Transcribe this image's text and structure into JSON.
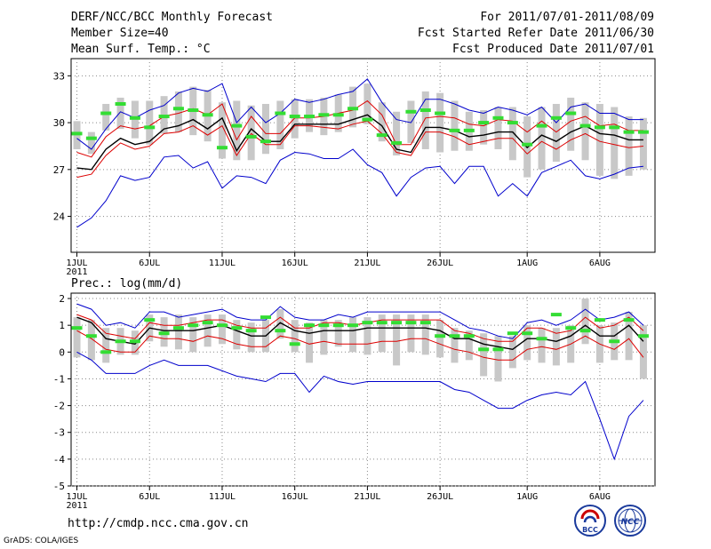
{
  "header": {
    "title": "DERF/NCC/BCC Monthly Forecast",
    "member_size": "Member Size=40",
    "variable": "Mean Surf. Temp.: °C",
    "period": "For 2011/07/01-2011/08/09",
    "fcst_started": "Fcst Started Refer Date 2011/06/30",
    "fcst_produced": "Fcst Produced Date 2011/07/01"
  },
  "footer": {
    "url": "http://cmdp.ncc.cma.gov.cn",
    "credit": "GrADS: COLA/IGES"
  },
  "logos": [
    {
      "name": "bcc-logo",
      "text": "BCC"
    },
    {
      "name": "ncc-logo",
      "text": "NCC"
    }
  ],
  "colors": {
    "envelope": "#0000cc",
    "spread": "#dd0000",
    "mean": "#000000",
    "observed": "#33dd33",
    "bars": "#c8c8c8",
    "grid": "#888888"
  },
  "chart_data": [
    {
      "id": "temperature",
      "type": "line",
      "title": "Mean Surf. Temp.: °C",
      "x": [
        1,
        2,
        3,
        4,
        5,
        6,
        7,
        8,
        9,
        10,
        11,
        12,
        13,
        14,
        15,
        16,
        17,
        18,
        19,
        20,
        21,
        22,
        23,
        24,
        25,
        26,
        27,
        28,
        29,
        30,
        31,
        32,
        33,
        34,
        35,
        36,
        37,
        38,
        39,
        40
      ],
      "xlim": [
        0.6,
        40.8
      ],
      "ylim": [
        21.7,
        34.1
      ],
      "yticks": [
        24,
        27,
        30,
        33
      ],
      "xticks": [
        {
          "x": 1,
          "label": "1JUL",
          "sublabel": "2011"
        },
        {
          "x": 6,
          "label": "6JUL"
        },
        {
          "x": 11,
          "label": "11JUL"
        },
        {
          "x": 16,
          "label": "16JUL"
        },
        {
          "x": 21,
          "label": "21JUL"
        },
        {
          "x": 26,
          "label": "26JUL"
        },
        {
          "x": 32,
          "label": "1AUG"
        },
        {
          "x": 37,
          "label": "6AUG"
        }
      ],
      "series": [
        {
          "name": "max",
          "style": "envelope",
          "values": [
            29.0,
            28.3,
            29.6,
            30.7,
            30.3,
            30.8,
            31.1,
            31.9,
            32.2,
            32.0,
            32.5,
            30.0,
            31.0,
            30.0,
            30.6,
            31.5,
            31.3,
            31.5,
            31.8,
            32.0,
            32.8,
            31.3,
            30.2,
            30.0,
            31.5,
            31.5,
            31.2,
            30.8,
            30.6,
            31.0,
            30.8,
            30.5,
            31.0,
            30.0,
            31.0,
            31.2,
            30.6,
            30.6,
            30.2,
            30.2
          ]
        },
        {
          "name": "upper",
          "style": "spread",
          "values": [
            28.1,
            27.8,
            29.1,
            29.8,
            29.6,
            29.8,
            30.4,
            30.6,
            30.9,
            30.5,
            31.2,
            28.9,
            30.4,
            29.3,
            29.3,
            30.3,
            30.3,
            30.4,
            30.6,
            30.8,
            31.4,
            30.5,
            28.6,
            28.6,
            30.3,
            30.4,
            30.3,
            29.9,
            29.8,
            30.2,
            30.1,
            29.4,
            30.1,
            29.4,
            30.1,
            30.4,
            29.8,
            29.9,
            29.5,
            29.5
          ]
        },
        {
          "name": "mean",
          "style": "mean",
          "values": [
            27.1,
            27.0,
            28.3,
            29.0,
            28.6,
            28.8,
            29.6,
            29.8,
            30.2,
            29.6,
            30.3,
            28.2,
            29.6,
            28.8,
            28.8,
            29.9,
            29.9,
            29.9,
            29.9,
            30.2,
            30.5,
            29.8,
            28.3,
            28.1,
            29.7,
            29.7,
            29.5,
            29.1,
            29.2,
            29.4,
            29.4,
            28.4,
            29.2,
            28.8,
            29.4,
            29.8,
            29.3,
            29.2,
            28.9,
            28.9
          ]
        },
        {
          "name": "lower",
          "style": "spread",
          "values": [
            26.5,
            26.7,
            27.9,
            28.7,
            28.3,
            28.5,
            29.3,
            29.4,
            29.8,
            29.2,
            29.8,
            27.9,
            29.3,
            28.6,
            28.6,
            29.8,
            29.8,
            29.7,
            29.6,
            29.9,
            30.1,
            29.3,
            28.1,
            27.9,
            29.4,
            29.4,
            29.1,
            28.6,
            28.8,
            29.0,
            29.0,
            28.0,
            28.8,
            28.3,
            28.9,
            29.3,
            28.8,
            28.6,
            28.4,
            28.5
          ]
        },
        {
          "name": "min",
          "style": "envelope",
          "values": [
            23.3,
            23.9,
            25.0,
            26.6,
            26.3,
            26.5,
            27.8,
            27.9,
            27.1,
            27.5,
            25.8,
            26.6,
            26.5,
            26.1,
            27.6,
            28.1,
            28.0,
            27.7,
            27.7,
            28.3,
            27.3,
            26.8,
            25.3,
            26.5,
            27.1,
            27.2,
            26.1,
            27.2,
            27.2,
            25.3,
            26.1,
            25.3,
            26.8,
            27.2,
            27.6,
            26.6,
            26.4,
            26.7,
            27.1,
            27.2
          ]
        }
      ],
      "observed": [
        29.3,
        29.0,
        30.6,
        31.2,
        30.3,
        29.7,
        30.4,
        30.9,
        30.8,
        30.5,
        28.4,
        29.8,
        29.1,
        28.8,
        30.6,
        30.4,
        30.4,
        30.5,
        30.5,
        30.9,
        30.2,
        29.2,
        28.7,
        30.7,
        30.8,
        30.6,
        29.5,
        29.5,
        30.0,
        30.3,
        30.0,
        28.6,
        29.8,
        30.3,
        30.6,
        29.8,
        29.7,
        29.7,
        29.4,
        29.4
      ],
      "bars": [
        [
          28.3,
          30.1
        ],
        [
          28.0,
          29.4
        ],
        [
          29.5,
          31.2
        ],
        [
          29.6,
          31.6
        ],
        [
          29.0,
          31.4
        ],
        [
          28.6,
          31.4
        ],
        [
          29.3,
          31.7
        ],
        [
          29.4,
          32.0
        ],
        [
          29.2,
          32.3
        ],
        [
          28.8,
          32.1
        ],
        [
          27.7,
          31.3
        ],
        [
          27.6,
          31.4
        ],
        [
          27.6,
          31.1
        ],
        [
          28.0,
          31.2
        ],
        [
          28.3,
          31.4
        ],
        [
          29.0,
          31.5
        ],
        [
          29.4,
          31.5
        ],
        [
          29.2,
          31.6
        ],
        [
          29.4,
          31.8
        ],
        [
          29.7,
          32.3
        ],
        [
          29.9,
          32.5
        ],
        [
          28.8,
          31.3
        ],
        [
          27.9,
          30.7
        ],
        [
          28.7,
          31.4
        ],
        [
          28.3,
          32.0
        ],
        [
          28.1,
          31.9
        ],
        [
          28.2,
          31.4
        ],
        [
          28.2,
          30.7
        ],
        [
          28.6,
          30.8
        ],
        [
          28.3,
          31.0
        ],
        [
          27.6,
          31.0
        ],
        [
          26.5,
          30.4
        ],
        [
          27.0,
          31.0
        ],
        [
          27.5,
          31.2
        ],
        [
          28.2,
          31.6
        ],
        [
          27.6,
          31.3
        ],
        [
          26.6,
          31.2
        ],
        [
          26.4,
          31.0
        ],
        [
          26.6,
          30.4
        ],
        [
          27.0,
          30.3
        ]
      ]
    },
    {
      "id": "precipitation",
      "type": "line",
      "title": "Prec.: log(mm/d)",
      "x": [
        1,
        2,
        3,
        4,
        5,
        6,
        7,
        8,
        9,
        10,
        11,
        12,
        13,
        14,
        15,
        16,
        17,
        18,
        19,
        20,
        21,
        22,
        23,
        24,
        25,
        26,
        27,
        28,
        29,
        30,
        31,
        32,
        33,
        34,
        35,
        36,
        37,
        38,
        39,
        40
      ],
      "xlim": [
        0.6,
        40.8
      ],
      "ylim": [
        -5,
        2.2
      ],
      "yticks": [
        -5,
        -4,
        -3,
        -2,
        -1,
        0,
        1,
        2
      ],
      "xticks": [
        {
          "x": 1,
          "label": "1JUL",
          "sublabel": "2011"
        },
        {
          "x": 6,
          "label": "6JUL"
        },
        {
          "x": 11,
          "label": "11JUL"
        },
        {
          "x": 16,
          "label": "16JUL"
        },
        {
          "x": 21,
          "label": "21JUL"
        },
        {
          "x": 26,
          "label": "26JUL"
        },
        {
          "x": 32,
          "label": "1AUG"
        },
        {
          "x": 37,
          "label": "6AUG"
        }
      ],
      "series": [
        {
          "name": "max",
          "style": "envelope",
          "values": [
            1.8,
            1.6,
            1.0,
            1.1,
            0.9,
            1.5,
            1.5,
            1.3,
            1.4,
            1.5,
            1.6,
            1.3,
            1.2,
            1.2,
            1.7,
            1.3,
            1.2,
            1.2,
            1.4,
            1.3,
            1.5,
            1.5,
            1.5,
            1.5,
            1.5,
            1.5,
            1.2,
            0.9,
            0.8,
            0.6,
            0.5,
            1.1,
            1.2,
            1.0,
            1.2,
            1.6,
            1.2,
            1.3,
            1.5,
            1.0
          ]
        },
        {
          "name": "upper",
          "style": "spread",
          "values": [
            1.4,
            1.2,
            0.7,
            0.6,
            0.5,
            1.1,
            1.0,
            1.0,
            1.1,
            1.2,
            1.2,
            1.0,
            0.9,
            0.9,
            1.3,
            0.9,
            0.9,
            1.1,
            1.1,
            1.0,
            1.1,
            1.2,
            1.2,
            1.2,
            1.2,
            1.2,
            0.8,
            0.7,
            0.5,
            0.4,
            0.4,
            0.9,
            0.9,
            0.7,
            0.8,
            1.3,
            0.9,
            1.0,
            1.3,
            0.8
          ]
        },
        {
          "name": "mean",
          "style": "mean",
          "values": [
            1.3,
            1.1,
            0.5,
            0.4,
            0.3,
            0.9,
            0.8,
            0.8,
            0.8,
            0.9,
            1.0,
            0.8,
            0.6,
            0.6,
            1.1,
            0.8,
            0.7,
            0.8,
            0.8,
            0.8,
            0.9,
            0.9,
            0.9,
            0.9,
            0.9,
            0.8,
            0.5,
            0.5,
            0.3,
            0.2,
            0.1,
            0.5,
            0.5,
            0.4,
            0.6,
            1.0,
            0.6,
            0.6,
            1.0,
            0.4
          ]
        },
        {
          "name": "lower",
          "style": "spread",
          "values": [
            0.8,
            0.5,
            0.1,
            0.0,
            0.0,
            0.6,
            0.5,
            0.5,
            0.4,
            0.6,
            0.5,
            0.3,
            0.2,
            0.2,
            0.6,
            0.5,
            0.3,
            0.4,
            0.3,
            0.3,
            0.3,
            0.4,
            0.4,
            0.5,
            0.5,
            0.3,
            0.1,
            0.0,
            -0.2,
            -0.3,
            -0.3,
            0.1,
            0.2,
            0.1,
            0.3,
            0.6,
            0.3,
            0.1,
            0.5,
            -0.2
          ]
        },
        {
          "name": "min",
          "style": "envelope",
          "values": [
            0.0,
            -0.3,
            -0.8,
            -0.8,
            -0.8,
            -0.5,
            -0.3,
            -0.5,
            -0.5,
            -0.5,
            -0.7,
            -0.9,
            -1.0,
            -1.1,
            -0.8,
            -0.8,
            -1.5,
            -0.9,
            -1.1,
            -1.2,
            -1.1,
            -1.1,
            -1.1,
            -1.1,
            -1.1,
            -1.1,
            -1.4,
            -1.5,
            -1.8,
            -2.1,
            -2.1,
            -1.8,
            -1.6,
            -1.5,
            -1.6,
            -1.1,
            -2.5,
            -4.0,
            -2.4,
            -1.8
          ]
        }
      ],
      "observed": [
        0.9,
        0.6,
        0.0,
        0.4,
        0.4,
        1.2,
        0.7,
        0.9,
        1.0,
        1.1,
        1.0,
        0.9,
        0.8,
        1.3,
        0.8,
        0.3,
        1.0,
        1.0,
        1.0,
        1.0,
        1.1,
        1.1,
        1.1,
        1.1,
        1.1,
        0.6,
        0.6,
        0.6,
        0.1,
        0.1,
        0.7,
        0.7,
        0.5,
        1.4,
        0.9,
        0.8,
        1.2,
        0.4,
        1.2,
        0.6
      ],
      "bars": [
        [
          -0.2,
          1.3
        ],
        [
          -0.3,
          1.2
        ],
        [
          -0.4,
          0.9
        ],
        [
          -0.1,
          0.9
        ],
        [
          -0.1,
          0.8
        ],
        [
          0.4,
          1.4
        ],
        [
          0.2,
          1.3
        ],
        [
          0.1,
          1.4
        ],
        [
          0.0,
          1.3
        ],
        [
          0.2,
          1.4
        ],
        [
          0.3,
          1.4
        ],
        [
          0.1,
          1.2
        ],
        [
          0.0,
          1.1
        ],
        [
          0.0,
          1.2
        ],
        [
          0.5,
          1.6
        ],
        [
          0.0,
          1.2
        ],
        [
          -0.4,
          1.1
        ],
        [
          -0.1,
          1.2
        ],
        [
          0.2,
          1.2
        ],
        [
          0.0,
          1.3
        ],
        [
          -0.1,
          1.3
        ],
        [
          0.0,
          1.4
        ],
        [
          -0.5,
          1.4
        ],
        [
          0.0,
          1.4
        ],
        [
          -0.1,
          1.4
        ],
        [
          -0.2,
          1.2
        ],
        [
          -0.4,
          0.9
        ],
        [
          -0.3,
          0.8
        ],
        [
          -0.9,
          0.7
        ],
        [
          -1.1,
          0.6
        ],
        [
          -0.6,
          0.6
        ],
        [
          -0.3,
          1.0
        ],
        [
          -0.4,
          0.9
        ],
        [
          -0.5,
          0.9
        ],
        [
          -0.4,
          1.0
        ],
        [
          0.3,
          2.0
        ],
        [
          -0.4,
          1.0
        ],
        [
          -0.3,
          1.1
        ],
        [
          -0.3,
          1.5
        ],
        [
          -1.0,
          1.0
        ]
      ]
    }
  ]
}
